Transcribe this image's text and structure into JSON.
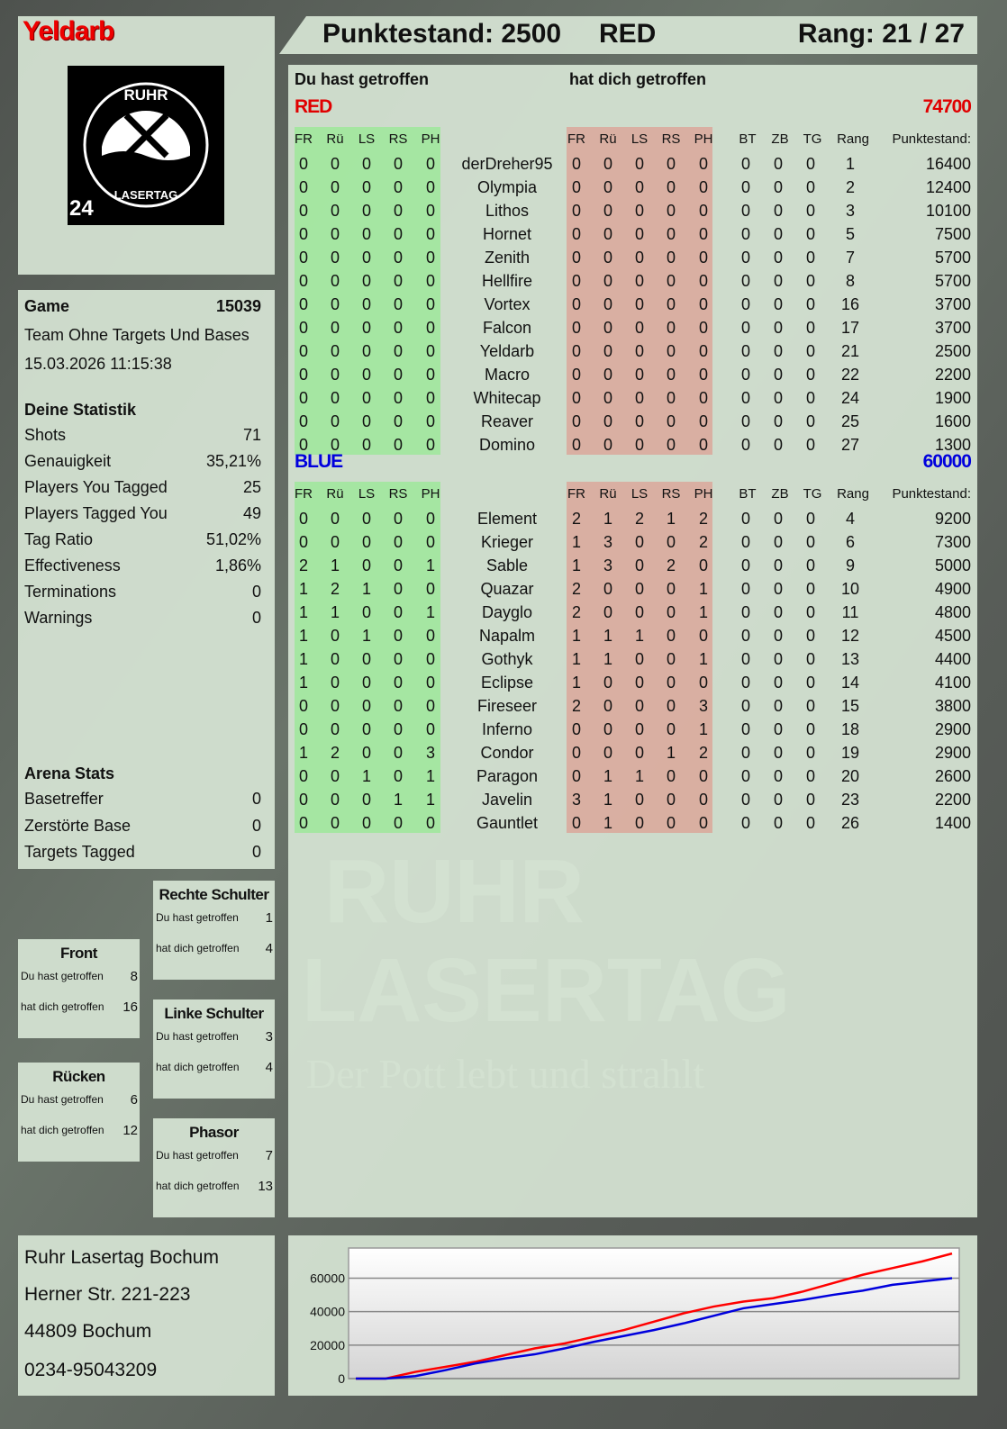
{
  "player": {
    "name": "Yeldarb",
    "score_label": "Punktestand: 2500",
    "team": "RED",
    "rank_label": "Rang: 21 / 27"
  },
  "logo": {
    "top": "RUHR",
    "bottom": "LASERTAG",
    "badge": "24"
  },
  "watermark": {
    "line1": "RUHR",
    "line2": "LASERTAG",
    "tagline": "Der Pott lebt und strahlt"
  },
  "colors": {
    "red": "#e00000",
    "blue": "#0000dd",
    "green_bg": "#9de89a",
    "red_bg": "#dba79a"
  },
  "table": {
    "you_hit": "Du hast getroffen",
    "hit_you": "hat dich getroffen",
    "hit_cols": [
      "FR",
      "Rü",
      "LS",
      "RS",
      "PH"
    ],
    "stat_cols": [
      "BT",
      "ZB",
      "TG",
      "Rang",
      "Punktestand:"
    ],
    "teams": [
      {
        "name": "RED",
        "total": "74700",
        "color": "#e00000",
        "players": [
          {
            "name": "derDreher95",
            "out": [
              0,
              0,
              0,
              0,
              0
            ],
            "in": [
              0,
              0,
              0,
              0,
              0
            ],
            "bt": 0,
            "zb": 0,
            "tg": 0,
            "rank": 1,
            "score": 16400
          },
          {
            "name": "Olympia",
            "out": [
              0,
              0,
              0,
              0,
              0
            ],
            "in": [
              0,
              0,
              0,
              0,
              0
            ],
            "bt": 0,
            "zb": 0,
            "tg": 0,
            "rank": 2,
            "score": 12400
          },
          {
            "name": "Lithos",
            "out": [
              0,
              0,
              0,
              0,
              0
            ],
            "in": [
              0,
              0,
              0,
              0,
              0
            ],
            "bt": 0,
            "zb": 0,
            "tg": 0,
            "rank": 3,
            "score": 10100
          },
          {
            "name": "Hornet",
            "out": [
              0,
              0,
              0,
              0,
              0
            ],
            "in": [
              0,
              0,
              0,
              0,
              0
            ],
            "bt": 0,
            "zb": 0,
            "tg": 0,
            "rank": 5,
            "score": 7500
          },
          {
            "name": "Zenith",
            "out": [
              0,
              0,
              0,
              0,
              0
            ],
            "in": [
              0,
              0,
              0,
              0,
              0
            ],
            "bt": 0,
            "zb": 0,
            "tg": 0,
            "rank": 7,
            "score": 5700
          },
          {
            "name": "Hellfire",
            "out": [
              0,
              0,
              0,
              0,
              0
            ],
            "in": [
              0,
              0,
              0,
              0,
              0
            ],
            "bt": 0,
            "zb": 0,
            "tg": 0,
            "rank": 8,
            "score": 5700
          },
          {
            "name": "Vortex",
            "out": [
              0,
              0,
              0,
              0,
              0
            ],
            "in": [
              0,
              0,
              0,
              0,
              0
            ],
            "bt": 0,
            "zb": 0,
            "tg": 0,
            "rank": 16,
            "score": 3700
          },
          {
            "name": "Falcon",
            "out": [
              0,
              0,
              0,
              0,
              0
            ],
            "in": [
              0,
              0,
              0,
              0,
              0
            ],
            "bt": 0,
            "zb": 0,
            "tg": 0,
            "rank": 17,
            "score": 3700
          },
          {
            "name": "Yeldarb",
            "out": [
              0,
              0,
              0,
              0,
              0
            ],
            "in": [
              0,
              0,
              0,
              0,
              0
            ],
            "bt": 0,
            "zb": 0,
            "tg": 0,
            "rank": 21,
            "score": 2500
          },
          {
            "name": "Macro",
            "out": [
              0,
              0,
              0,
              0,
              0
            ],
            "in": [
              0,
              0,
              0,
              0,
              0
            ],
            "bt": 0,
            "zb": 0,
            "tg": 0,
            "rank": 22,
            "score": 2200
          },
          {
            "name": "Whitecap",
            "out": [
              0,
              0,
              0,
              0,
              0
            ],
            "in": [
              0,
              0,
              0,
              0,
              0
            ],
            "bt": 0,
            "zb": 0,
            "tg": 0,
            "rank": 24,
            "score": 1900
          },
          {
            "name": "Reaver",
            "out": [
              0,
              0,
              0,
              0,
              0
            ],
            "in": [
              0,
              0,
              0,
              0,
              0
            ],
            "bt": 0,
            "zb": 0,
            "tg": 0,
            "rank": 25,
            "score": 1600
          },
          {
            "name": "Domino",
            "out": [
              0,
              0,
              0,
              0,
              0
            ],
            "in": [
              0,
              0,
              0,
              0,
              0
            ],
            "bt": 0,
            "zb": 0,
            "tg": 0,
            "rank": 27,
            "score": 1300
          }
        ]
      },
      {
        "name": "BLUE",
        "total": "60000",
        "color": "#0000dd",
        "players": [
          {
            "name": "Element",
            "out": [
              0,
              0,
              0,
              0,
              0
            ],
            "in": [
              2,
              1,
              2,
              1,
              2
            ],
            "bt": 0,
            "zb": 0,
            "tg": 0,
            "rank": 4,
            "score": 9200
          },
          {
            "name": "Krieger",
            "out": [
              0,
              0,
              0,
              0,
              0
            ],
            "in": [
              1,
              3,
              0,
              0,
              2
            ],
            "bt": 0,
            "zb": 0,
            "tg": 0,
            "rank": 6,
            "score": 7300
          },
          {
            "name": "Sable",
            "out": [
              2,
              1,
              0,
              0,
              1
            ],
            "in": [
              1,
              3,
              0,
              2,
              0
            ],
            "bt": 0,
            "zb": 0,
            "tg": 0,
            "rank": 9,
            "score": 5000
          },
          {
            "name": "Quazar",
            "out": [
              1,
              2,
              1,
              0,
              0
            ],
            "in": [
              2,
              0,
              0,
              0,
              1
            ],
            "bt": 0,
            "zb": 0,
            "tg": 0,
            "rank": 10,
            "score": 4900
          },
          {
            "name": "Dayglo",
            "out": [
              1,
              1,
              0,
              0,
              1
            ],
            "in": [
              2,
              0,
              0,
              0,
              1
            ],
            "bt": 0,
            "zb": 0,
            "tg": 0,
            "rank": 11,
            "score": 4800
          },
          {
            "name": "Napalm",
            "out": [
              1,
              0,
              1,
              0,
              0
            ],
            "in": [
              1,
              1,
              1,
              0,
              0
            ],
            "bt": 0,
            "zb": 0,
            "tg": 0,
            "rank": 12,
            "score": 4500
          },
          {
            "name": "Gothyk",
            "out": [
              1,
              0,
              0,
              0,
              0
            ],
            "in": [
              1,
              1,
              0,
              0,
              1
            ],
            "bt": 0,
            "zb": 0,
            "tg": 0,
            "rank": 13,
            "score": 4400
          },
          {
            "name": "Eclipse",
            "out": [
              1,
              0,
              0,
              0,
              0
            ],
            "in": [
              1,
              0,
              0,
              0,
              0
            ],
            "bt": 0,
            "zb": 0,
            "tg": 0,
            "rank": 14,
            "score": 4100
          },
          {
            "name": "Fireseer",
            "out": [
              0,
              0,
              0,
              0,
              0
            ],
            "in": [
              2,
              0,
              0,
              0,
              3
            ],
            "bt": 0,
            "zb": 0,
            "tg": 0,
            "rank": 15,
            "score": 3800
          },
          {
            "name": "Inferno",
            "out": [
              0,
              0,
              0,
              0,
              0
            ],
            "in": [
              0,
              0,
              0,
              0,
              1
            ],
            "bt": 0,
            "zb": 0,
            "tg": 0,
            "rank": 18,
            "score": 2900
          },
          {
            "name": "Condor",
            "out": [
              1,
              2,
              0,
              0,
              3
            ],
            "in": [
              0,
              0,
              0,
              1,
              2
            ],
            "bt": 0,
            "zb": 0,
            "tg": 0,
            "rank": 19,
            "score": 2900
          },
          {
            "name": "Paragon",
            "out": [
              0,
              0,
              1,
              0,
              1
            ],
            "in": [
              0,
              1,
              1,
              0,
              0
            ],
            "bt": 0,
            "zb": 0,
            "tg": 0,
            "rank": 20,
            "score": 2600
          },
          {
            "name": "Javelin",
            "out": [
              0,
              0,
              0,
              1,
              1
            ],
            "in": [
              3,
              1,
              0,
              0,
              0
            ],
            "bt": 0,
            "zb": 0,
            "tg": 0,
            "rank": 23,
            "score": 2200
          },
          {
            "name": "Gauntlet",
            "out": [
              0,
              0,
              0,
              0,
              0
            ],
            "in": [
              0,
              1,
              0,
              0,
              0
            ],
            "bt": 0,
            "zb": 0,
            "tg": 0,
            "rank": 26,
            "score": 1400
          }
        ]
      }
    ]
  },
  "game": {
    "label": "Game",
    "id": "15039",
    "mode": "Team Ohne Targets Und Bases",
    "datetime": "15.03.2026 11:15:38"
  },
  "stats": {
    "title": "Deine Statistik",
    "rows": [
      {
        "label": "Shots",
        "value": "71"
      },
      {
        "label": "Genauigkeit",
        "value": "35,21%"
      },
      {
        "label": "Players You Tagged",
        "value": "25"
      },
      {
        "label": "Players Tagged You",
        "value": "49"
      },
      {
        "label": "Tag Ratio",
        "value": "51,02%"
      },
      {
        "label": "Effectiveness",
        "value": "1,86%"
      },
      {
        "label": "Terminations",
        "value": "0"
      },
      {
        "label": "Warnings",
        "value": "0"
      }
    ]
  },
  "arena": {
    "title": "Arena Stats",
    "rows": [
      {
        "label": "Basetreffer",
        "value": "0"
      },
      {
        "label": "Zerstörte Base",
        "value": "0"
      },
      {
        "label": "Targets Tagged",
        "value": "0"
      }
    ]
  },
  "hits": {
    "you": "Du hast getroffen",
    "them": "hat dich getroffen",
    "zones": [
      {
        "name": "Rechte Schulter",
        "you": "1",
        "them": "4"
      },
      {
        "name": "Front",
        "you": "8",
        "them": "16"
      },
      {
        "name": "Linke Schulter",
        "you": "3",
        "them": "4"
      },
      {
        "name": "Rücken",
        "you": "6",
        "them": "12"
      },
      {
        "name": "Phasor",
        "you": "7",
        "them": "13"
      }
    ]
  },
  "address": {
    "lines": [
      "Ruhr Lasertag Bochum",
      "Herner Str. 221-223",
      "44809 Bochum",
      "0234-95043209"
    ]
  },
  "chart_data": {
    "type": "line",
    "title": "",
    "xlabel": "",
    "ylabel": "",
    "ylim": [
      0,
      78000
    ],
    "yticks": [
      "0",
      "20000",
      "40000",
      "60000"
    ],
    "grid": true,
    "series": [
      {
        "color": "#ff0000",
        "values": [
          0,
          0,
          4000,
          7000,
          10000,
          14000,
          18000,
          21000,
          25000,
          29000,
          34000,
          39000,
          43000,
          46000,
          48000,
          52000,
          57000,
          62000,
          66000,
          70000,
          74700
        ]
      },
      {
        "color": "#0000dd",
        "values": [
          0,
          0,
          1500,
          5000,
          9000,
          12000,
          14500,
          18000,
          22000,
          25500,
          29000,
          33000,
          37500,
          42000,
          44500,
          47000,
          50000,
          52500,
          56000,
          58000,
          60000
        ]
      }
    ]
  }
}
